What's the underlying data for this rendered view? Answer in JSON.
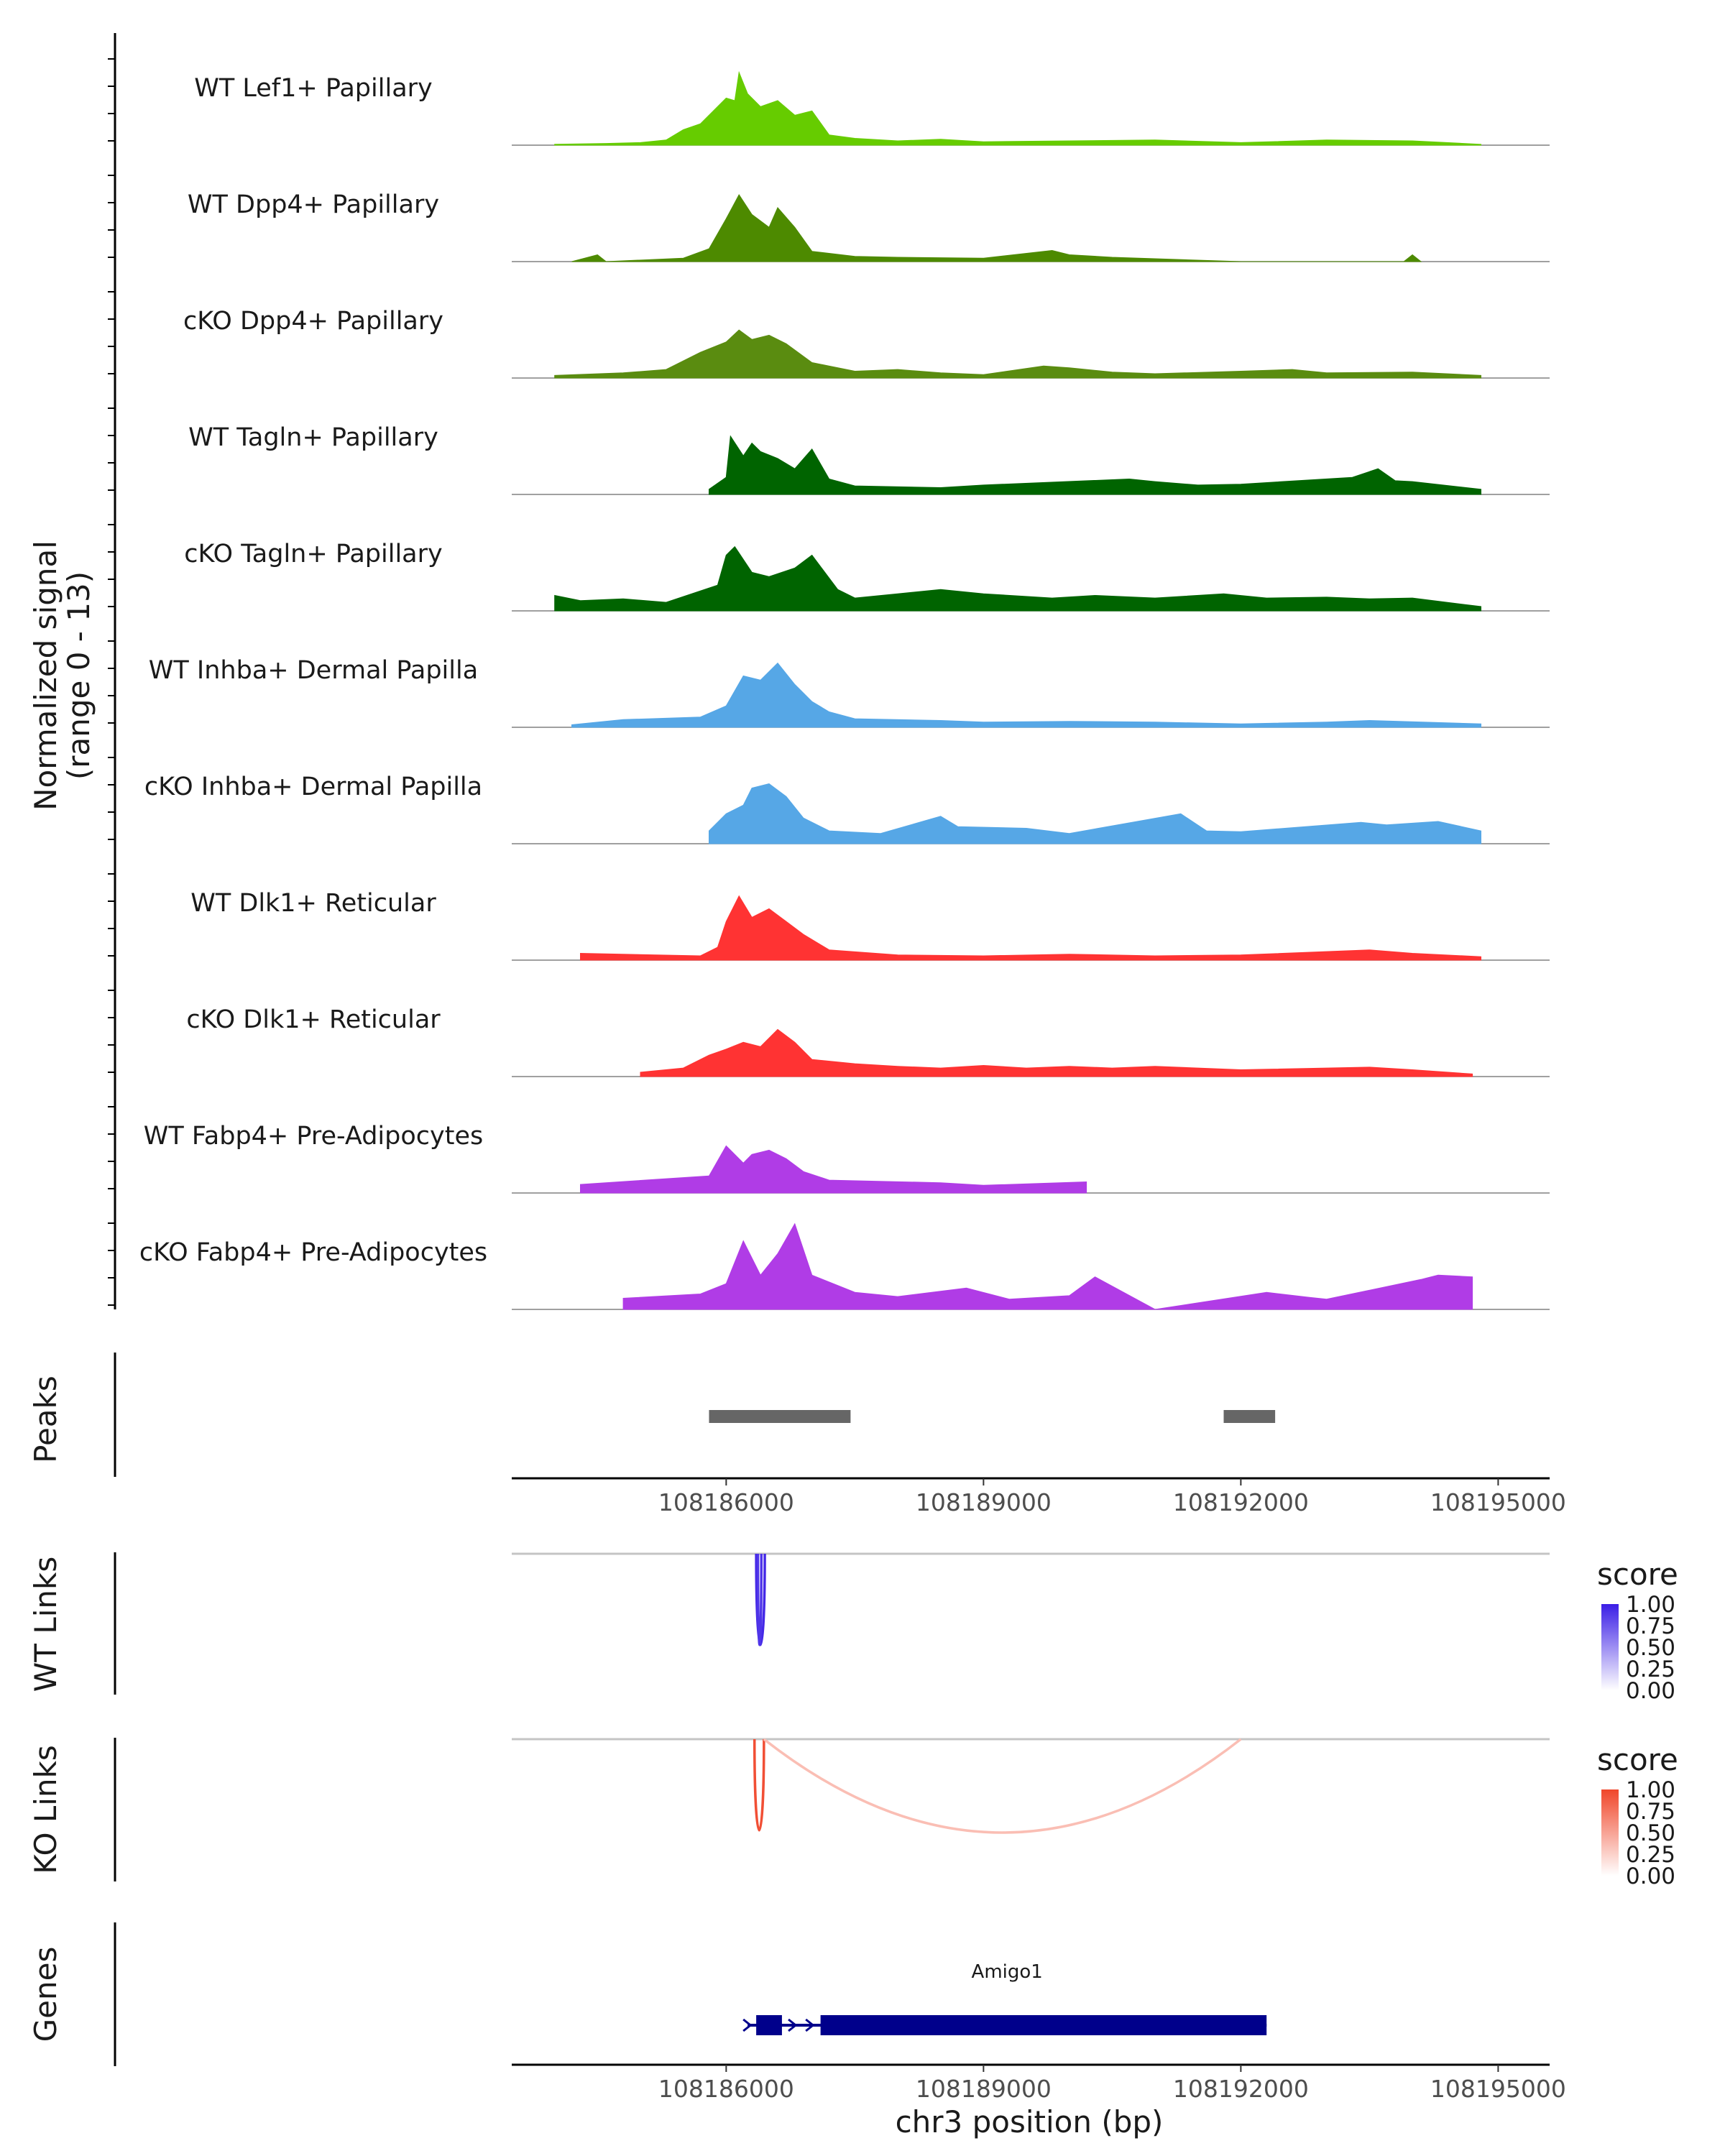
{
  "chart_data": {
    "type": "coverage-track",
    "region": {
      "chrom": "chr3",
      "start": 108183500,
      "end": 108195600
    },
    "signal_axis_title": [
      "Normalized signal",
      "(range 0 - 13)"
    ],
    "signal_range": [
      0,
      13
    ],
    "tracks": [
      {
        "name": "WT Lef1+ Papillary",
        "color": "#66cc00",
        "profile": [
          [
            108184000,
            0.1
          ],
          [
            108184600,
            0.2
          ],
          [
            108185000,
            0.3
          ],
          [
            108185300,
            0.6
          ],
          [
            108185500,
            1.8
          ],
          [
            108185700,
            2.5
          ],
          [
            108185900,
            4.5
          ],
          [
            108186000,
            5.5
          ],
          [
            108186100,
            5.2
          ],
          [
            108186150,
            8.5
          ],
          [
            108186250,
            6.0
          ],
          [
            108186400,
            4.5
          ],
          [
            108186600,
            5.2
          ],
          [
            108186800,
            3.5
          ],
          [
            108187000,
            4.0
          ],
          [
            108187200,
            1.2
          ],
          [
            108187500,
            0.8
          ],
          [
            108188000,
            0.5
          ],
          [
            108188500,
            0.7
          ],
          [
            108189000,
            0.4
          ],
          [
            108190000,
            0.5
          ],
          [
            108191000,
            0.6
          ],
          [
            108192000,
            0.3
          ],
          [
            108193000,
            0.6
          ],
          [
            108194000,
            0.5
          ],
          [
            108194800,
            0.1
          ]
        ]
      },
      {
        "name": "WT Dpp4+ Papillary",
        "color": "#4d8a00",
        "profile": [
          [
            108184200,
            0
          ],
          [
            108184500,
            0.8
          ],
          [
            108184600,
            0
          ],
          [
            108185500,
            0.4
          ],
          [
            108185800,
            1.5
          ],
          [
            108186000,
            5.0
          ],
          [
            108186150,
            7.8
          ],
          [
            108186300,
            5.5
          ],
          [
            108186500,
            4.0
          ],
          [
            108186600,
            6.3
          ],
          [
            108186800,
            4.0
          ],
          [
            108187000,
            1.2
          ],
          [
            108187500,
            0.6
          ],
          [
            108188000,
            0.5
          ],
          [
            108189000,
            0.4
          ],
          [
            108189800,
            1.3
          ],
          [
            108190000,
            0.8
          ],
          [
            108190500,
            0.5
          ],
          [
            108192000,
            0
          ],
          [
            108193900,
            0
          ],
          [
            108194000,
            0.8
          ],
          [
            108194100,
            0
          ]
        ]
      },
      {
        "name": "cKO Dpp4+ Papillary",
        "color": "#5a8c10",
        "profile": [
          [
            108184000,
            0.3
          ],
          [
            108184800,
            0.6
          ],
          [
            108185300,
            1.0
          ],
          [
            108185700,
            3.0
          ],
          [
            108186000,
            4.2
          ],
          [
            108186150,
            5.6
          ],
          [
            108186300,
            4.5
          ],
          [
            108186500,
            5.0
          ],
          [
            108186700,
            4.0
          ],
          [
            108187000,
            1.8
          ],
          [
            108187500,
            0.8
          ],
          [
            108188000,
            1.0
          ],
          [
            108188500,
            0.6
          ],
          [
            108189000,
            0.4
          ],
          [
            108189700,
            1.4
          ],
          [
            108190000,
            1.2
          ],
          [
            108190500,
            0.7
          ],
          [
            108191000,
            0.5
          ],
          [
            108192000,
            0.8
          ],
          [
            108192600,
            1.0
          ],
          [
            108193000,
            0.6
          ],
          [
            108194000,
            0.7
          ],
          [
            108194800,
            0.3
          ]
        ]
      },
      {
        "name": "WT Tagln+ Papillary",
        "color": "#006400",
        "profile": [
          [
            108185800,
            0.6
          ],
          [
            108186000,
            2.0
          ],
          [
            108186050,
            6.8
          ],
          [
            108186200,
            4.5
          ],
          [
            108186300,
            6.0
          ],
          [
            108186400,
            5.0
          ],
          [
            108186600,
            4.2
          ],
          [
            108186800,
            3.0
          ],
          [
            108187000,
            5.3
          ],
          [
            108187200,
            1.8
          ],
          [
            108187500,
            1.0
          ],
          [
            108188500,
            0.8
          ],
          [
            108189000,
            1.1
          ],
          [
            108190700,
            1.8
          ],
          [
            108191000,
            1.5
          ],
          [
            108191500,
            1.1
          ],
          [
            108192000,
            1.2
          ],
          [
            108193300,
            2.0
          ],
          [
            108193600,
            3.0
          ],
          [
            108193800,
            1.6
          ],
          [
            108194000,
            1.5
          ],
          [
            108194800,
            0.6
          ]
        ]
      },
      {
        "name": "cKO Tagln+ Papillary",
        "color": "#006400",
        "profile": [
          [
            108184000,
            1.8
          ],
          [
            108184300,
            1.2
          ],
          [
            108184800,
            1.4
          ],
          [
            108185300,
            1.0
          ],
          [
            108185900,
            3.0
          ],
          [
            108186000,
            6.5
          ],
          [
            108186100,
            7.5
          ],
          [
            108186300,
            4.5
          ],
          [
            108186500,
            4.0
          ],
          [
            108186800,
            5.0
          ],
          [
            108187000,
            6.5
          ],
          [
            108187300,
            2.5
          ],
          [
            108187500,
            1.5
          ],
          [
            108188000,
            2.0
          ],
          [
            108188500,
            2.5
          ],
          [
            108189000,
            2.0
          ],
          [
            108189800,
            1.5
          ],
          [
            108190300,
            1.8
          ],
          [
            108191000,
            1.5
          ],
          [
            108191800,
            2.0
          ],
          [
            108192300,
            1.5
          ],
          [
            108193000,
            1.6
          ],
          [
            108193500,
            1.4
          ],
          [
            108194000,
            1.5
          ],
          [
            108194800,
            0.5
          ]
        ]
      },
      {
        "name": "WT Inhba+ Dermal Papilla",
        "color": "#56a7e6",
        "profile": [
          [
            108184200,
            0.3
          ],
          [
            108184800,
            0.9
          ],
          [
            108185700,
            1.2
          ],
          [
            108186000,
            2.5
          ],
          [
            108186200,
            6.0
          ],
          [
            108186400,
            5.5
          ],
          [
            108186600,
            7.5
          ],
          [
            108186800,
            5.0
          ],
          [
            108187000,
            3.0
          ],
          [
            108187200,
            1.8
          ],
          [
            108187500,
            1.0
          ],
          [
            108188500,
            0.8
          ],
          [
            108189000,
            0.6
          ],
          [
            108190000,
            0.7
          ],
          [
            108191000,
            0.6
          ],
          [
            108192000,
            0.4
          ],
          [
            108193000,
            0.6
          ],
          [
            108193500,
            0.8
          ],
          [
            108194800,
            0.4
          ]
        ]
      },
      {
        "name": "cKO Inhba+ Dermal Papilla",
        "color": "#56a7e6",
        "profile": [
          [
            108185800,
            1.5
          ],
          [
            108186000,
            3.5
          ],
          [
            108186200,
            4.5
          ],
          [
            108186300,
            6.5
          ],
          [
            108186500,
            7.0
          ],
          [
            108186700,
            5.5
          ],
          [
            108186900,
            3.0
          ],
          [
            108187200,
            1.5
          ],
          [
            108187800,
            1.2
          ],
          [
            108188500,
            3.2
          ],
          [
            108188700,
            2.0
          ],
          [
            108189500,
            1.8
          ],
          [
            108190000,
            1.2
          ],
          [
            108191300,
            3.5
          ],
          [
            108191600,
            1.5
          ],
          [
            108192000,
            1.4
          ],
          [
            108193400,
            2.5
          ],
          [
            108193700,
            2.2
          ],
          [
            108194300,
            2.6
          ],
          [
            108194800,
            1.5
          ]
        ]
      },
      {
        "name": "WT Dlk1+ Reticular",
        "color": "#ff3333",
        "profile": [
          [
            108184300,
            0.8
          ],
          [
            108185700,
            0.5
          ],
          [
            108185900,
            1.5
          ],
          [
            108186000,
            4.5
          ],
          [
            108186150,
            7.5
          ],
          [
            108186300,
            5.0
          ],
          [
            108186500,
            6.0
          ],
          [
            108186700,
            4.5
          ],
          [
            108186900,
            3.0
          ],
          [
            108187200,
            1.2
          ],
          [
            108188000,
            0.6
          ],
          [
            108189000,
            0.5
          ],
          [
            108190000,
            0.7
          ],
          [
            108191000,
            0.5
          ],
          [
            108192000,
            0.6
          ],
          [
            108193500,
            1.2
          ],
          [
            108194000,
            0.8
          ],
          [
            108194800,
            0.4
          ]
        ]
      },
      {
        "name": "cKO Dlk1+ Reticular",
        "color": "#ff3333",
        "profile": [
          [
            108185000,
            0.5
          ],
          [
            108185500,
            1.0
          ],
          [
            108185800,
            2.5
          ],
          [
            108186000,
            3.2
          ],
          [
            108186200,
            4.0
          ],
          [
            108186400,
            3.5
          ],
          [
            108186600,
            5.5
          ],
          [
            108186800,
            4.0
          ],
          [
            108187000,
            2.0
          ],
          [
            108187500,
            1.5
          ],
          [
            108188000,
            1.2
          ],
          [
            108188500,
            1.0
          ],
          [
            108189000,
            1.3
          ],
          [
            108189500,
            1.0
          ],
          [
            108190000,
            1.2
          ],
          [
            108190500,
            1.0
          ],
          [
            108191000,
            1.2
          ],
          [
            108192000,
            0.8
          ],
          [
            108193000,
            1.0
          ],
          [
            108193500,
            1.1
          ],
          [
            108194000,
            0.8
          ],
          [
            108194700,
            0.3
          ]
        ]
      },
      {
        "name": "WT Fabp4+ Pre-Adipocytes",
        "color": "#b03ce6",
        "profile": [
          [
            108184300,
            1.0
          ],
          [
            108185800,
            2.0
          ],
          [
            108186000,
            5.5
          ],
          [
            108186200,
            3.5
          ],
          [
            108186300,
            4.5
          ],
          [
            108186500,
            5.0
          ],
          [
            108186700,
            4.0
          ],
          [
            108186900,
            2.5
          ],
          [
            108187200,
            1.5
          ],
          [
            108188500,
            1.2
          ],
          [
            108189000,
            0.9
          ],
          [
            108190200,
            1.3
          ]
        ]
      },
      {
        "name": "cKO Fabp4+ Pre-Adipocytes",
        "color": "#b03ce6",
        "profile": [
          [
            108184800,
            1.3
          ],
          [
            108185700,
            1.8
          ],
          [
            108186000,
            3.0
          ],
          [
            108186200,
            8.0
          ],
          [
            108186400,
            4.0
          ],
          [
            108186600,
            6.5
          ],
          [
            108186800,
            10.0
          ],
          [
            108187000,
            4.0
          ],
          [
            108187500,
            2.0
          ],
          [
            108188000,
            1.5
          ],
          [
            108188800,
            2.5
          ],
          [
            108189300,
            1.2
          ],
          [
            108190000,
            1.6
          ],
          [
            108190300,
            3.8
          ],
          [
            108191000,
            0.0
          ],
          [
            108192300,
            2.0
          ],
          [
            108192800,
            1.4
          ],
          [
            108193000,
            1.2
          ],
          [
            108194100,
            3.5
          ],
          [
            108194300,
            4.0
          ],
          [
            108194700,
            3.8
          ]
        ]
      }
    ],
    "peaks": {
      "title": "Peaks",
      "color": "#666666",
      "intervals": [
        [
          108185800,
          108187450
        ],
        [
          108191800,
          108192400
        ]
      ]
    },
    "x_axis": {
      "title": "chr3 position (bp)",
      "ticks": [
        108186000,
        108189000,
        108192000,
        108195000
      ],
      "tick_labels": [
        "108186000",
        "108189000",
        "108192000",
        "108195000"
      ]
    },
    "wt_links": {
      "title": "WT Links",
      "legend_title": "score",
      "legend_ticks": [
        "1.00",
        "0.75",
        "0.50",
        "0.25",
        "0.00"
      ],
      "color_high": "#3b1ee6",
      "arcs": [
        {
          "start": 108186350,
          "end": 108186450,
          "score": 0.95
        },
        {
          "start": 108186370,
          "end": 108186410,
          "score": 0.9
        }
      ]
    },
    "ko_links": {
      "title": "KO Links",
      "legend_title": "score",
      "legend_ticks": [
        "1.00",
        "0.75",
        "0.50",
        "0.25",
        "0.00"
      ],
      "color_high": "#f0462a",
      "arcs": [
        {
          "start": 108186330,
          "end": 108186440,
          "score": 0.95
        },
        {
          "start": 108186440,
          "end": 108192000,
          "score": 0.35
        }
      ]
    },
    "genes": {
      "title": "Genes",
      "color": "#00008b",
      "items": [
        {
          "name": "Amigo1",
          "start": 108186250,
          "end": 108192300,
          "strand": "+",
          "exons": [
            [
              108186350,
              108186650
            ],
            [
              108187100,
              108192300
            ]
          ]
        }
      ]
    }
  }
}
